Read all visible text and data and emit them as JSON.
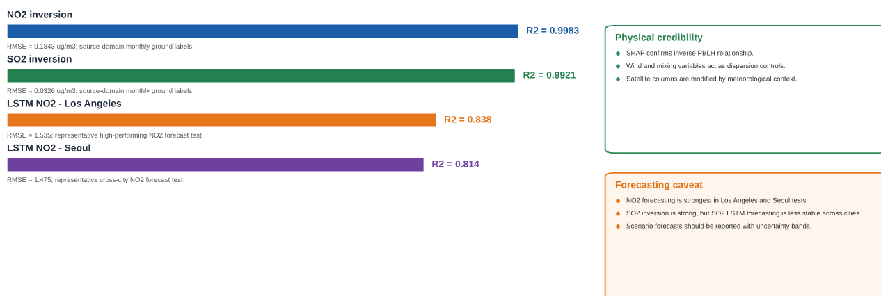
{
  "chart_data": [
    {
      "type": "bar",
      "orientation": "horizontal",
      "categories": [
        "NO2 inversion",
        "SO2 inversion",
        "LSTM NO2 - Los Angeles",
        "LSTM NO2 - Seoul"
      ],
      "values": [
        0.9983,
        0.9921,
        0.838,
        0.814
      ],
      "colors": [
        "#1a5ca8",
        "#23804f",
        "#e8761a",
        "#7040a0"
      ],
      "value_labels": [
        "R2 = 0.9983",
        "R2 = 0.9921",
        "R2 = 0.838",
        "R2 = 0.814"
      ],
      "annotations": [
        "RMSE = 0.1843 ug/m3; source-domain monthly ground labels",
        "RMSE = 0.0326 ug/m3; source-domain monthly ground labels",
        "RMSE = 1.535; representative high-performing NO2 forecast test",
        "RMSE = 1.475; representative cross-city NO2 forecast test"
      ]
    },
    {
      "type": "other",
      "title": "Physical credibility",
      "annotations": [
        "SHAP confirms inverse PBLH relationship.",
        "Wind and mixing variables act as dispersion controls.",
        "Satellite columns are modified by meteorological context."
      ]
    },
    {
      "type": "other",
      "title": "Forecasting caveat",
      "annotations": [
        "NO2 forecasting is strongest in Los Angeles and Seoul tests.",
        "SO2 inversion is strong, but SO2 LSTM forecasting is less stable across cities.",
        "Scenario forecasts should be reported with uncertainty bands."
      ]
    }
  ]
}
